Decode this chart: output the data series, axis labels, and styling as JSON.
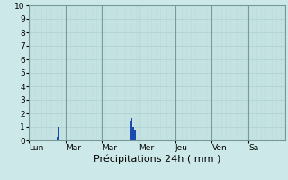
{
  "background_color": "#cce8e8",
  "plot_bg_color": "#cce8e8",
  "bar_color": "#1a4ab0",
  "grid_color_minor": "#aacccc",
  "grid_color_major": "#88aaaa",
  "sep_color": "#779999",
  "ylim": [
    0,
    10
  ],
  "yticks": [
    0,
    1,
    2,
    3,
    4,
    5,
    6,
    7,
    8,
    9,
    10
  ],
  "xlabel": "Précipitations 24h ( mm )",
  "n_hours": 168,
  "hours_per_day": 24,
  "n_days": 7,
  "day_names": [
    "Lun",
    "Mar",
    "Mar",
    "Mer",
    "Jeu",
    "Ven",
    "Sa"
  ],
  "bar_data": {
    "18": 0.3,
    "19": 1.0,
    "66": 1.5,
    "67": 1.7,
    "68": 1.0,
    "69": 0.8
  },
  "ytick_fontsize": 6.5,
  "xtick_fontsize": 6.5,
  "xlabel_fontsize": 8
}
